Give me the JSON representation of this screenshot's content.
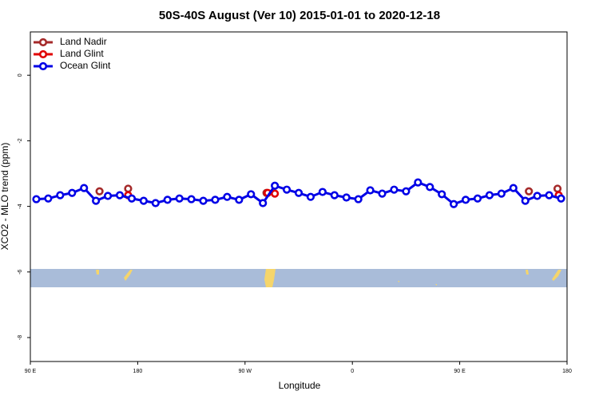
{
  "chart_data": {
    "type": "scatter",
    "title": "50S-40S August (Ver 10)   2015-01-01 to 2020-12-18",
    "x_label": "Longitude",
    "y_label": "XCO2 - MLO trend (ppm)",
    "xlim": [
      90,
      540
    ],
    "ylim": [
      -8.73,
      1.32
    ],
    "xticks": [
      {
        "value": 90,
        "label": "90 E"
      },
      180,
      {
        "value": 270,
        "label": "90 W"
      },
      {
        "value": 360,
        "label": "0"
      },
      {
        "value": 450,
        "label": "90 E"
      },
      {
        "value": 540,
        "label": "180"
      }
    ],
    "yticks": [
      0,
      -2,
      -4,
      -6,
      -8
    ],
    "legend": "top-left",
    "series": [
      {
        "name": "Land Nadir",
        "color": "#a52a2a",
        "mode": "markers",
        "x": [
          148,
          172,
          288,
          508,
          532
        ],
        "values": [
          -3.54,
          -3.46,
          -3.59,
          -3.54,
          -3.46
        ]
      },
      {
        "name": "Land Glint",
        "color": "#e00000",
        "mode": "markers",
        "x": [
          172,
          289,
          295,
          533
        ],
        "values": [
          -3.66,
          -3.59,
          -3.61,
          -3.66
        ]
      },
      {
        "name": "Ocean Glint",
        "color": "#0000e6",
        "mode": "lines+markers",
        "x": [
          95,
          105,
          115,
          125,
          135,
          145,
          155,
          165,
          175,
          185,
          195,
          205,
          215,
          225,
          235,
          245,
          255,
          265,
          275,
          285,
          295,
          305,
          315,
          325,
          335,
          345,
          355,
          365,
          375,
          385,
          395,
          405,
          415,
          425,
          435,
          445,
          455,
          465,
          475,
          485,
          495,
          505,
          515,
          525,
          535
        ],
        "values": [
          -3.78,
          -3.76,
          -3.66,
          -3.59,
          -3.44,
          -3.83,
          -3.68,
          -3.66,
          -3.76,
          -3.83,
          -3.9,
          -3.8,
          -3.76,
          -3.78,
          -3.83,
          -3.8,
          -3.71,
          -3.8,
          -3.63,
          -3.9,
          -3.37,
          -3.49,
          -3.59,
          -3.71,
          -3.56,
          -3.66,
          -3.73,
          -3.78,
          -3.51,
          -3.61,
          -3.49,
          -3.54,
          -3.27,
          -3.41,
          -3.63,
          -3.93,
          -3.8,
          -3.76,
          -3.66,
          -3.61,
          -3.44,
          -3.83,
          -3.68,
          -3.66,
          -3.76
        ]
      }
    ]
  }
}
